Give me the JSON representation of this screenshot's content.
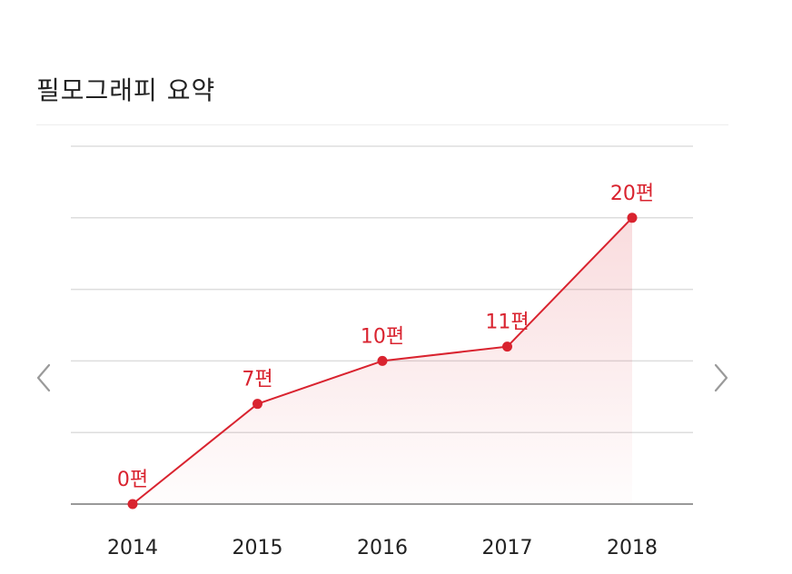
{
  "filmography": {
    "title": "필모그래피 요약"
  },
  "navigation": {
    "prev_icon": "chevron-left-icon",
    "next_icon": "chevron-right-icon"
  },
  "colors": {
    "accent": "#d9232f",
    "grid": "#dddddd",
    "baseline": "#999999",
    "arrow": "#9a9a9a"
  },
  "chart_data": {
    "type": "area",
    "categories": [
      "2014",
      "2015",
      "2016",
      "2017",
      "2018"
    ],
    "values": [
      0,
      7,
      10,
      11,
      20
    ],
    "labels": [
      "0편",
      "7편",
      "10편",
      "11편",
      "20편"
    ],
    "title": "",
    "xlabel": "",
    "ylabel": "",
    "ylim": [
      0,
      25
    ],
    "grid": true,
    "legend": "none"
  }
}
